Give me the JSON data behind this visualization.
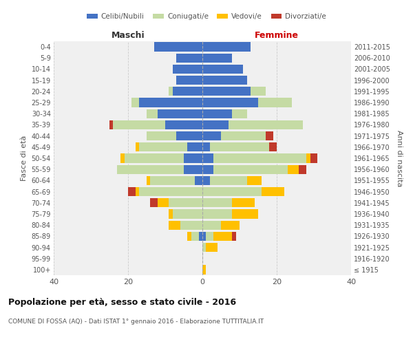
{
  "age_groups": [
    "100+",
    "95-99",
    "90-94",
    "85-89",
    "80-84",
    "75-79",
    "70-74",
    "65-69",
    "60-64",
    "55-59",
    "50-54",
    "45-49",
    "40-44",
    "35-39",
    "30-34",
    "25-29",
    "20-24",
    "15-19",
    "10-14",
    "5-9",
    "0-4"
  ],
  "birth_years": [
    "≤ 1915",
    "1916-1920",
    "1921-1925",
    "1926-1930",
    "1931-1935",
    "1936-1940",
    "1941-1945",
    "1946-1950",
    "1951-1955",
    "1956-1960",
    "1961-1965",
    "1966-1970",
    "1971-1975",
    "1976-1980",
    "1981-1985",
    "1986-1990",
    "1991-1995",
    "1996-2000",
    "2001-2005",
    "2006-2010",
    "2011-2015"
  ],
  "male": {
    "celibi": [
      0,
      0,
      0,
      1,
      0,
      0,
      0,
      0,
      2,
      5,
      5,
      4,
      7,
      10,
      12,
      17,
      8,
      7,
      8,
      7,
      13
    ],
    "coniugati": [
      0,
      0,
      0,
      2,
      6,
      8,
      9,
      17,
      12,
      18,
      16,
      13,
      8,
      14,
      3,
      2,
      1,
      0,
      0,
      0,
      0
    ],
    "vedovi": [
      0,
      0,
      0,
      1,
      3,
      1,
      3,
      1,
      1,
      0,
      1,
      1,
      0,
      0,
      0,
      0,
      0,
      0,
      0,
      0,
      0
    ],
    "divorziati": [
      0,
      0,
      0,
      0,
      0,
      0,
      2,
      2,
      0,
      0,
      0,
      0,
      0,
      1,
      0,
      0,
      0,
      0,
      0,
      0,
      0
    ]
  },
  "female": {
    "nubili": [
      0,
      0,
      0,
      1,
      0,
      0,
      0,
      0,
      2,
      3,
      3,
      2,
      5,
      7,
      8,
      15,
      13,
      12,
      11,
      8,
      13
    ],
    "coniugate": [
      0,
      0,
      1,
      2,
      5,
      8,
      8,
      16,
      10,
      20,
      25,
      16,
      12,
      20,
      4,
      9,
      4,
      0,
      0,
      0,
      0
    ],
    "vedove": [
      1,
      0,
      3,
      5,
      5,
      7,
      6,
      6,
      4,
      3,
      1,
      0,
      0,
      0,
      0,
      0,
      0,
      0,
      0,
      0,
      0
    ],
    "divorziate": [
      0,
      0,
      0,
      1,
      0,
      0,
      0,
      0,
      0,
      2,
      2,
      2,
      2,
      0,
      0,
      0,
      0,
      0,
      0,
      0,
      0
    ]
  },
  "colors": {
    "celibi": "#4472c4",
    "coniugati": "#c5dba4",
    "vedovi": "#ffc000",
    "divorziati": "#c0392b"
  },
  "xlim": 40,
  "title": "Popolazione per età, sesso e stato civile - 2016",
  "subtitle": "COMUNE DI FOSSA (AQ) - Dati ISTAT 1° gennaio 2016 - Elaborazione TUTTITALIA.IT",
  "ylabel_left": "Fasce di età",
  "ylabel_right": "Anni di nascita",
  "xlabel_left": "Maschi",
  "xlabel_right": "Femmine",
  "legend_labels": [
    "Celibi/Nubili",
    "Coniugati/e",
    "Vedovi/e",
    "Divorziati/e"
  ],
  "bg_color": "#f0f0f0",
  "bar_height": 0.82
}
